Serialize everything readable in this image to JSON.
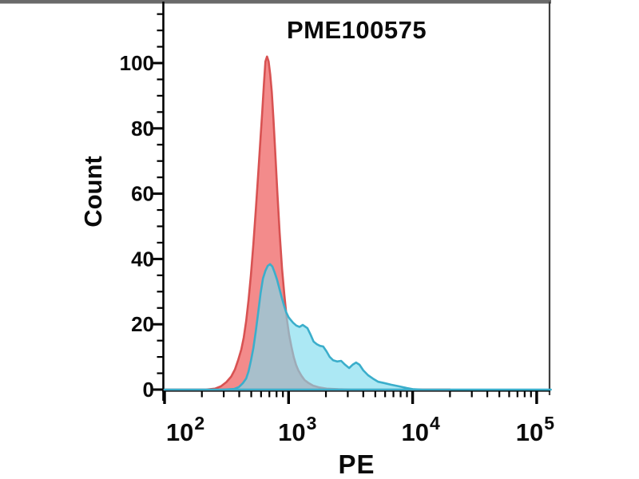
{
  "title": "PME100575",
  "axes": {
    "x": {
      "label": "PE",
      "scale": "log",
      "ticks": [
        {
          "base": "10",
          "exp": "2",
          "value": 100
        },
        {
          "base": "10",
          "exp": "3",
          "value": 1000
        },
        {
          "base": "10",
          "exp": "4",
          "value": 10000
        },
        {
          "base": "10",
          "exp": "5",
          "value": 100000
        }
      ]
    },
    "y": {
      "label": "Count",
      "major_ticks": [
        0,
        20,
        40,
        60,
        80,
        100
      ],
      "minor_step": 5,
      "minor_max": 115,
      "range": [
        0,
        118
      ]
    }
  },
  "chart_data": {
    "type": "area",
    "title": "PME100575",
    "xlabel": "PE",
    "ylabel": "Count",
    "x_scale": "log10",
    "x_range": [
      100,
      130000
    ],
    "ylim": [
      0,
      118
    ],
    "grid": false,
    "legend": "none",
    "series": [
      {
        "name": "red-histogram",
        "fill": "#EF6A6A",
        "fill_opacity": 0.78,
        "stroke": "#D85252",
        "peak": {
          "x": 665,
          "count": 102
        },
        "points": [
          [
            100,
            0
          ],
          [
            216,
            0
          ],
          [
            255,
            0.3
          ],
          [
            285,
            1
          ],
          [
            315,
            2.3
          ],
          [
            345,
            4
          ],
          [
            370,
            6.2
          ],
          [
            392,
            9
          ],
          [
            416,
            12.3
          ],
          [
            435,
            16
          ],
          [
            455,
            21
          ],
          [
            476,
            27.5
          ],
          [
            497,
            35
          ],
          [
            520,
            44.5
          ],
          [
            545,
            55.5
          ],
          [
            570,
            66.5
          ],
          [
            595,
            77.5
          ],
          [
            613,
            85
          ],
          [
            632,
            93.5
          ],
          [
            651,
            100.5
          ],
          [
            670,
            102
          ],
          [
            690,
            100.5
          ],
          [
            711,
            96.5
          ],
          [
            732,
            91
          ],
          [
            754,
            83
          ],
          [
            777,
            74
          ],
          [
            811,
            60.5
          ],
          [
            847,
            48
          ],
          [
            885,
            37
          ],
          [
            924,
            29
          ],
          [
            965,
            22
          ],
          [
            1008,
            17
          ],
          [
            1053,
            13.2
          ],
          [
            1099,
            10
          ],
          [
            1148,
            7.6
          ],
          [
            1199,
            5.9
          ],
          [
            1271,
            4.2
          ],
          [
            1348,
            2.9
          ],
          [
            1449,
            2
          ],
          [
            1578,
            1.2
          ],
          [
            1752,
            0.7
          ],
          [
            2023,
            0.3
          ],
          [
            2520,
            0.1
          ],
          [
            3200,
            0
          ],
          [
            20000,
            0
          ]
        ]
      },
      {
        "name": "cyan-histogram",
        "fill": "#7FDBEE",
        "fill_opacity": 0.65,
        "stroke": "#3BAECB",
        "peak": {
          "x": 709,
          "count": 38.4
        },
        "points": [
          [
            100,
            0
          ],
          [
            300,
            0
          ],
          [
            364,
            0.2
          ],
          [
            398,
            0.8
          ],
          [
            429,
            2
          ],
          [
            455,
            3.4
          ],
          [
            476,
            5.6
          ],
          [
            497,
            8.8
          ],
          [
            520,
            12.7
          ],
          [
            544,
            17.8
          ],
          [
            569,
            23.7
          ],
          [
            595,
            29.6
          ],
          [
            621,
            34
          ],
          [
            651,
            36.4
          ],
          [
            679,
            37.9
          ],
          [
            709,
            38.4
          ],
          [
            740,
            37.7
          ],
          [
            772,
            35.9
          ],
          [
            806,
            33.7
          ],
          [
            841,
            31.1
          ],
          [
            878,
            28.4
          ],
          [
            916,
            25.9
          ],
          [
            956,
            23.7
          ],
          [
            998,
            22.2
          ],
          [
            1042,
            21.3
          ],
          [
            1087,
            20.5
          ],
          [
            1154,
            19.6
          ],
          [
            1225,
            19.2
          ],
          [
            1301,
            19.8
          ],
          [
            1418,
            18.8
          ],
          [
            1501,
            16.9
          ],
          [
            1591,
            14.7
          ],
          [
            1688,
            13.9
          ],
          [
            1791,
            13.4
          ],
          [
            1900,
            13.2
          ],
          [
            2023,
            11.7
          ],
          [
            2146,
            10
          ],
          [
            2284,
            9
          ],
          [
            2461,
            8.6
          ],
          [
            2651,
            8.8
          ],
          [
            2856,
            7.6
          ],
          [
            3077,
            6.6
          ],
          [
            3281,
            7.6
          ],
          [
            3498,
            8.3
          ],
          [
            3730,
            7.6
          ],
          [
            4001,
            5.9
          ],
          [
            4371,
            4.4
          ],
          [
            4771,
            3.4
          ],
          [
            5281,
            2.4
          ],
          [
            5901,
            2
          ],
          [
            6701,
            1.5
          ],
          [
            7751,
            1
          ],
          [
            8951,
            0.5
          ],
          [
            10200,
            0.1
          ],
          [
            12000,
            0
          ],
          [
            130000,
            0
          ]
        ]
      }
    ]
  },
  "colors": {
    "background": "#FFFFFF",
    "axis": "#000000",
    "frame_top": "#6A6A6A",
    "frame_right": "#3F3F3F",
    "text": "#0A0A0A"
  }
}
